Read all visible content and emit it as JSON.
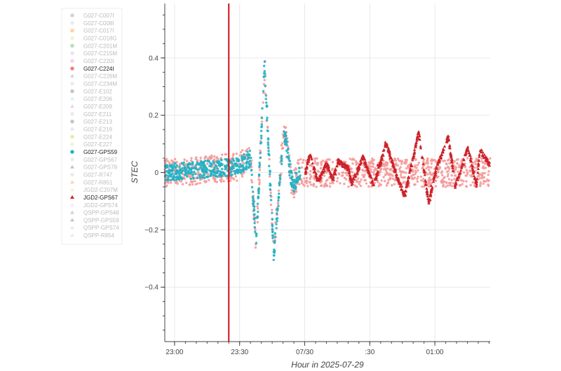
{
  "chart_data": {
    "type": "scatter",
    "title": "",
    "xlabel": "Hour in 2025-07-29",
    "ylabel": "STEC",
    "x_units": "minutes after 23:00 (2025-07-29)",
    "xlim": [
      -4.5,
      145.5
    ],
    "ylim": [
      -0.59,
      0.59
    ],
    "x_ticks": [
      {
        "value": 0,
        "label": "23:00"
      },
      {
        "value": 30,
        "label": "23:30"
      },
      {
        "value": 60,
        "label": "07/30"
      },
      {
        "value": 90,
        "label": ":30"
      },
      {
        "value": 120,
        "label": "01:00"
      }
    ],
    "y_ticks": [
      {
        "value": 0.4,
        "label": "0.4"
      },
      {
        "value": 0.2,
        "label": "0.2"
      },
      {
        "value": 0,
        "label": "0"
      },
      {
        "value": -0.2,
        "label": "−0.2"
      },
      {
        "value": -0.4,
        "label": "−0.4"
      }
    ],
    "grid": true,
    "event_line": {
      "x": 25,
      "color": "#d0101a"
    },
    "legend_position": "left-outside",
    "series": [
      {
        "name": "G027-C224I",
        "marker": "circle",
        "color": "#f59a9a",
        "active": true,
        "range": [
          -4.5,
          145.5
        ],
        "noise": 0.05,
        "points": [
          [
            -4.5,
            0
          ],
          [
            28.9,
            0.02
          ],
          [
            35.0,
            0.05
          ],
          [
            37.6,
            -0.24
          ],
          [
            41.5,
            0.37
          ],
          [
            45.7,
            -0.28
          ],
          [
            50.5,
            0.16
          ],
          [
            54.4,
            -0.05
          ],
          [
            57.4,
            0
          ],
          [
            145.5,
            0
          ]
        ]
      },
      {
        "name": "G027-GPS59",
        "marker": "circle",
        "color": "#1fb3c4",
        "active": true,
        "range": [
          -4.5,
          58
        ],
        "noise": 0.03,
        "points": [
          [
            -4.5,
            0
          ],
          [
            28.9,
            0.02
          ],
          [
            35.0,
            0.05
          ],
          [
            37.6,
            -0.24
          ],
          [
            41.5,
            0.38
          ],
          [
            45.7,
            -0.29
          ],
          [
            50.5,
            0.15
          ],
          [
            54.4,
            -0.05
          ],
          [
            57.4,
            0
          ]
        ]
      },
      {
        "name": "JGD2-GPS67",
        "marker": "triangle",
        "color": "#cc2229",
        "active": true,
        "range": [
          60.3,
          145.3
        ],
        "noise": 0.008,
        "points": [
          [
            60.3,
            0.0
          ],
          [
            62.3,
            0.064
          ],
          [
            66.2,
            -0.034
          ],
          [
            70.1,
            0.032
          ],
          [
            73.0,
            -0.025
          ],
          [
            75.3,
            0.039
          ],
          [
            80.1,
            0.015
          ],
          [
            81.7,
            -0.039
          ],
          [
            86.9,
            0.054
          ],
          [
            91.8,
            -0.047
          ],
          [
            97.6,
            0.105
          ],
          [
            101.2,
            0.015
          ],
          [
            106.1,
            -0.083
          ],
          [
            112.6,
            0.142
          ],
          [
            117.1,
            -0.108
          ],
          [
            120.7,
            0.015
          ],
          [
            126.2,
            0.125
          ],
          [
            129.4,
            -0.047
          ],
          [
            135.3,
            0.088
          ],
          [
            139.2,
            -0.047
          ],
          [
            140.8,
            0.081
          ],
          [
            145.3,
            0.027
          ]
        ]
      }
    ],
    "legend": [
      {
        "label": "G027-C007I",
        "marker": "circle",
        "color": "#7f7f7f",
        "active": false
      },
      {
        "label": "G027-C008I",
        "marker": "circle",
        "color": "#c7c7c7",
        "active": false
      },
      {
        "label": "G027-C017I",
        "marker": "square",
        "color": "#ff7f0e",
        "active": false
      },
      {
        "label": "G027-C018G",
        "marker": "circle",
        "color": "#dbdb8d",
        "active": false
      },
      {
        "label": "G027-C201M",
        "marker": "circle",
        "color": "#2ca02c",
        "active": false
      },
      {
        "label": "G027-C215M",
        "marker": "circle",
        "color": "#c5b0d5",
        "active": false
      },
      {
        "label": "G027-C220I",
        "marker": "circle",
        "color": "#e377c2",
        "active": false
      },
      {
        "label": "G027-C224I",
        "marker": "circle",
        "color": "#f07c84",
        "active": true
      },
      {
        "label": "G027-C226M",
        "marker": "triangle",
        "color": "#7f7f7f",
        "active": false
      },
      {
        "label": "G027-C234M",
        "marker": "circle",
        "color": "#c7c7c7",
        "active": false
      },
      {
        "label": "G027-E102",
        "marker": "circle",
        "color": "#555555",
        "active": false
      },
      {
        "label": "G027-E206",
        "marker": "triangle",
        "color": "#9ecae1",
        "active": false
      },
      {
        "label": "G027-E209",
        "marker": "triangle",
        "color": "#e377c2",
        "active": false
      },
      {
        "label": "G027-E211",
        "marker": "circle",
        "color": "#c7c7c7",
        "active": false
      },
      {
        "label": "G027-E213",
        "marker": "circle",
        "color": "#555555",
        "active": false
      },
      {
        "label": "G027-E219",
        "marker": "circle",
        "color": "#c7c7c7",
        "active": false
      },
      {
        "label": "G027-E224",
        "marker": "circle",
        "color": "#bcbd22",
        "active": false
      },
      {
        "label": "G027-E227",
        "marker": "circle",
        "color": "#dbdb8d",
        "active": false
      },
      {
        "label": "G027-GPS59",
        "marker": "circle",
        "color": "#1fb3c4",
        "active": true
      },
      {
        "label": "G027-GPS67",
        "marker": "circle",
        "color": "#c7c7c7",
        "active": false
      },
      {
        "label": "G027-GPS78",
        "marker": "triangle",
        "color": "#555555",
        "active": false
      },
      {
        "label": "G027-R747",
        "marker": "circle",
        "color": "#c7c7c7",
        "active": false
      },
      {
        "label": "G027-R851",
        "marker": "triangle",
        "color": "#ff7f0e",
        "active": false
      },
      {
        "label": "JGD2-C207M",
        "marker": "triangle",
        "color": "#dbdb8d",
        "active": false
      },
      {
        "label": "JGD2-GPS67",
        "marker": "triangle",
        "color": "#cc2229",
        "active": true
      },
      {
        "label": "JGD2-GPS74",
        "marker": "triangle",
        "color": "#f7b6d2",
        "active": false
      },
      {
        "label": "QSPP-GPS48",
        "marker": "triangle",
        "color": "#7f7f7f",
        "active": false
      },
      {
        "label": "QSPP-GPS59",
        "marker": "triangle",
        "color": "#555555",
        "active": false
      },
      {
        "label": "QSPP-GPS74",
        "marker": "triangle",
        "color": "#9ecae1",
        "active": false
      },
      {
        "label": "QSPP-R854",
        "marker": "triangle",
        "color": "#c7c7c7",
        "active": false
      }
    ]
  }
}
